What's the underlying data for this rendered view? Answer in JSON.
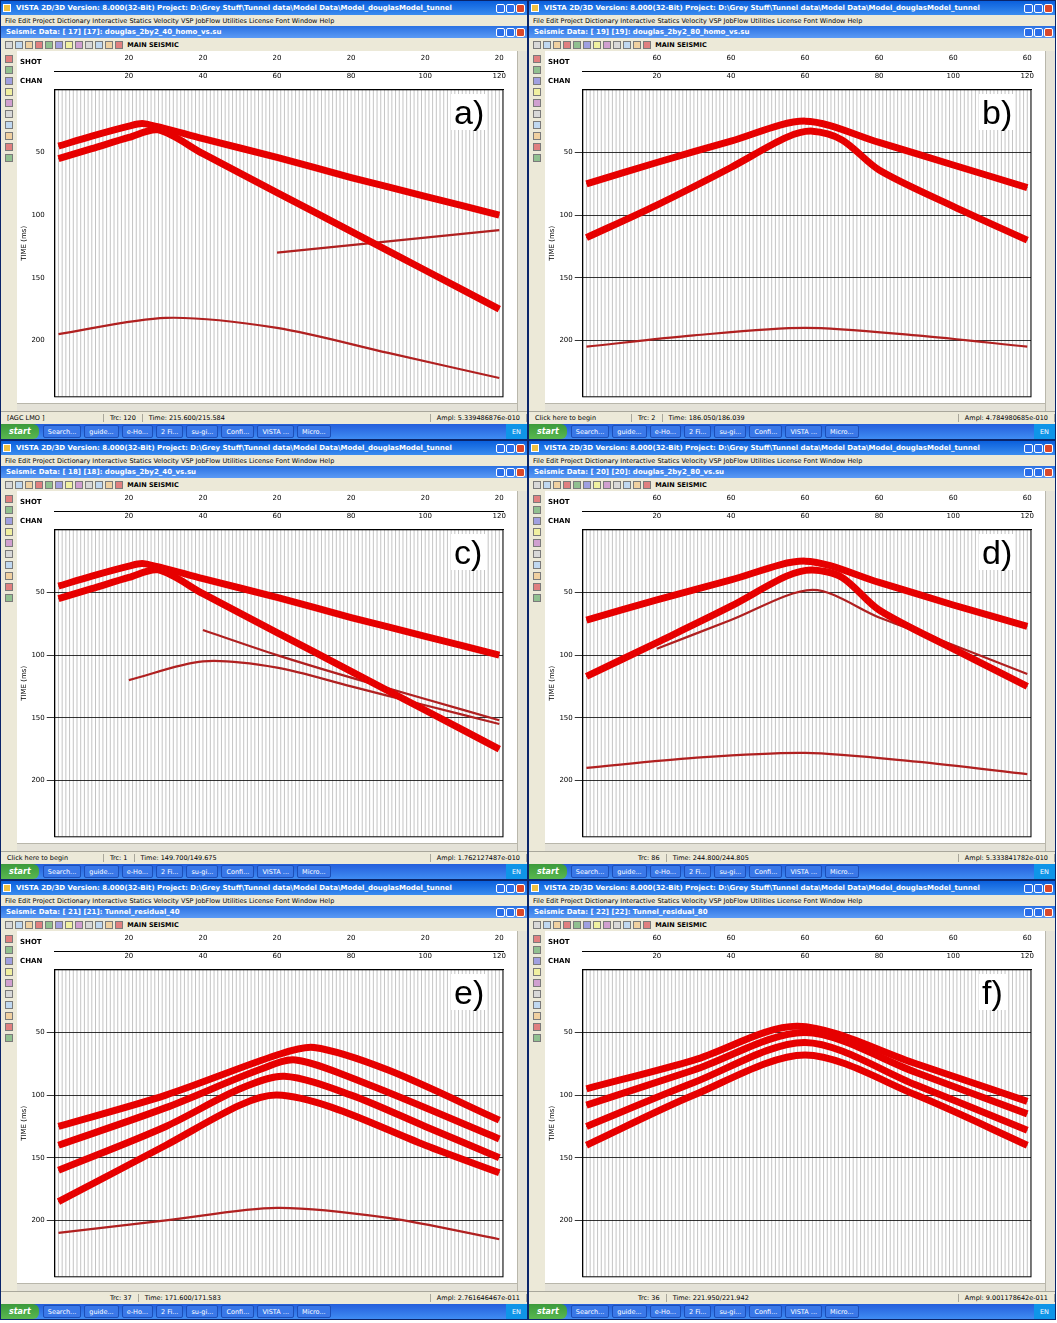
{
  "screens": [
    {
      "letter": "a)",
      "window_title": "VISTA 2D/3D Version: 8.000(32-Bit) Project: D:\\Grey Stuff\\Tunnel data\\Model Data\\Model_douglasModel_tunnel",
      "menu": "File Edit Project Dictionary Interactive Statics Velocity VSP JobFlow Utilities License Font Window Help",
      "subtitle": "Seismic Data: [ 17] [17]: douglas_2by2_40_homo_vs.su",
      "toolbar_label": "MAIN SEISMIC",
      "status": [
        "[AGC LMO ]",
        "Trc: 120",
        "Time: 215.600/215.584",
        "Ampl: 5.339486876e-010"
      ],
      "taskbar": [
        "start",
        "Search...",
        "guide...",
        "e-Ho...",
        "2 Fi...",
        "su-gi...",
        "Confi...",
        "VISTA ...",
        "Micro...",
        "EN"
      ]
    },
    {
      "letter": "b)",
      "window_title": "VISTA 2D/3D Version: 8.000(32-Bit) Project: D:\\Grey Stuff\\Tunnel data\\Model Data\\Model_douglasModel_tunnel",
      "menu": "File Edit Project Dictionary Interactive Statics Velocity VSP JobFlow Utilities License Font Window Help",
      "subtitle": "Seismic Data: [ 19] [19]: douglas_2by2_80_homo_vs.su",
      "toolbar_label": "MAIN SEISMIC",
      "status": [
        "Click here to begin",
        "Trc: 2",
        "Time: 186.050/186.039",
        "Ampl: 4.784980685e-010"
      ],
      "taskbar": [
        "start",
        "Search...",
        "guide...",
        "e-Ho...",
        "2 Fi...",
        "su-gi...",
        "Confi...",
        "VISTA ...",
        "Micro...",
        "EN"
      ]
    },
    {
      "letter": "c)",
      "window_title": "VISTA 2D/3D Version: 8.000(32-Bit) Project: D:\\Grey Stuff\\Tunnel data\\Model Data\\Model_douglasModel_tunnel",
      "menu": "File Edit Project Dictionary Interactive Statics Velocity VSP JobFlow Utilities License Font Window Help",
      "subtitle": "Seismic Data: [ 18] [18]: douglas_2by2_40_vs.su",
      "toolbar_label": "MAIN SEISMIC",
      "status": [
        "Click here to begin",
        "Trc: 1",
        "Time: 149.700/149.675",
        "Ampl: 1.762127487e-010"
      ],
      "taskbar": [
        "start",
        "Search...",
        "guide...",
        "e-Ho...",
        "2 Fi...",
        "su-gi...",
        "Confi...",
        "VISTA ...",
        "Micro...",
        "EN"
      ]
    },
    {
      "letter": "d)",
      "window_title": "VISTA 2D/3D Version: 8.000(32-Bit) Project: D:\\Grey Stuff\\Tunnel data\\Model Data\\Model_douglasModel_tunnel",
      "menu": "File Edit Project Dictionary Interactive Statics Velocity VSP JobFlow Utilities License Font Window Help",
      "subtitle": "Seismic Data: [ 20] [20]: douglas_2by2_80_vs.su",
      "toolbar_label": "MAIN SEISMIC",
      "status": [
        "",
        "Trc: 86",
        "Time: 244.800/244.805",
        "Ampl: 5.333841782e-010"
      ],
      "taskbar": [
        "start",
        "Search...",
        "guide...",
        "e-Ho...",
        "2 Fi...",
        "su-gi...",
        "Confi...",
        "VISTA ...",
        "Micro...",
        "EN"
      ]
    },
    {
      "letter": "e)",
      "window_title": "VISTA 2D/3D Version: 8.000(32-Bit) Project: D:\\Grey Stuff\\Tunnel data\\Model Data\\Model_douglasModel_tunnel",
      "menu": "File Edit Project Dictionary Interactive Statics Velocity VSP JobFlow Utilities License Font Window Help",
      "subtitle": "Seismic Data: [ 21] [21]: Tunnel_residual_40",
      "toolbar_label": "MAIN SEISMIC",
      "status": [
        "",
        "Trc: 37",
        "Time: 171.600/171.583",
        "Ampl: 2.761646467e-011"
      ],
      "taskbar": [
        "start",
        "Search...",
        "guide...",
        "e-Ho...",
        "2 Fi...",
        "su-gi...",
        "Confi...",
        "VISTA ...",
        "Micro...",
        "EN"
      ]
    },
    {
      "letter": "f)",
      "window_title": "VISTA 2D/3D Version: 8.000(32-Bit) Project: D:\\Grey Stuff\\Tunnel data\\Model Data\\Model_douglasModel_tunnel",
      "menu": "File Edit Project Dictionary Interactive Statics Velocity VSP JobFlow Utilities License Font Window Help",
      "subtitle": "Seismic Data: [ 22] [22]: Tunnel_residual_80",
      "toolbar_label": "MAIN SEISMIC",
      "status": [
        "",
        "Trc: 36",
        "Time: 221.950/221.942",
        "Ampl: 9.001178642e-011"
      ],
      "taskbar": [
        "start",
        "Search...",
        "guide...",
        "e-Ho...",
        "2 Fi...",
        "su-gi...",
        "Confi...",
        "VISTA ...",
        "Micro...",
        "EN"
      ]
    }
  ],
  "chart_data": [
    {
      "type": "line",
      "xlabel": "CHAN",
      "x2label": "SHOT",
      "ylabel": "TIME (ms)",
      "xlim": [
        0,
        121
      ],
      "xticks": [
        20,
        40,
        60,
        80,
        100,
        120
      ],
      "x2ticks": [
        {
          "value": 20,
          "label": "20"
        },
        {
          "value": 40,
          "label": "20"
        },
        {
          "value": 60,
          "label": "20"
        },
        {
          "value": 80,
          "label": "20"
        },
        {
          "value": 100,
          "label": "20"
        },
        {
          "value": 120,
          "label": "20"
        }
      ],
      "ylim": [
        0,
        245
      ],
      "yticks": [
        50,
        100,
        150,
        200
      ],
      "grid": false,
      "series": [
        {
          "x": [
            1,
            10,
            20,
            24,
            40,
            60,
            80,
            100,
            120
          ],
          "values": [
            45,
            37,
            29,
            27,
            39,
            54,
            70,
            85,
            100
          ],
          "color": "#e60000",
          "line_style": "thick"
        },
        {
          "x": [
            1,
            10,
            20,
            28,
            40,
            60,
            80,
            100,
            120
          ],
          "values": [
            55,
            47,
            38,
            32,
            51,
            82,
            113,
            144,
            175
          ],
          "color": "#e60000",
          "line_style": "thick"
        },
        {
          "x": [
            1,
            30,
            60,
            90,
            120
          ],
          "values": [
            195,
            182,
            190,
            210,
            230
          ],
          "color": "#b02020",
          "line_style": "thin"
        },
        {
          "x": [
            60,
            80,
            100,
            120
          ],
          "values": [
            130,
            124,
            118,
            112
          ],
          "color": "#b02020",
          "line_style": "thin"
        }
      ]
    },
    {
      "type": "line",
      "xlabel": "CHAN",
      "x2label": "SHOT",
      "ylabel": "TIME (ms)",
      "xlim": [
        0,
        121
      ],
      "xticks": [
        20,
        40,
        60,
        80,
        100,
        120
      ],
      "x2ticks": [
        {
          "value": 20,
          "label": "60"
        },
        {
          "value": 40,
          "label": "60"
        },
        {
          "value": 60,
          "label": "60"
        },
        {
          "value": 80,
          "label": "60"
        },
        {
          "value": 100,
          "label": "60"
        },
        {
          "value": 120,
          "label": "60"
        }
      ],
      "ylim": [
        0,
        245
      ],
      "yticks": [
        50,
        100,
        150,
        200
      ],
      "grid": true,
      "series": [
        {
          "x": [
            1,
            20,
            40,
            60,
            80,
            100,
            120
          ],
          "values": [
            75,
            58,
            41,
            25,
            42,
            60,
            78
          ],
          "color": "#e60000",
          "line_style": "thick"
        },
        {
          "x": [
            1,
            20,
            40,
            55,
            62,
            70,
            80,
            100,
            120
          ],
          "values": [
            118,
            92,
            62,
            38,
            33,
            40,
            64,
            93,
            120
          ],
          "color": "#e60000",
          "line_style": "thick"
        },
        {
          "x": [
            1,
            30,
            60,
            90,
            120
          ],
          "values": [
            205,
            196,
            190,
            196,
            205
          ],
          "color": "#b02020",
          "line_style": "thin"
        }
      ]
    },
    {
      "type": "line",
      "xlabel": "CHAN",
      "x2label": "SHOT",
      "ylabel": "TIME (ms)",
      "xlim": [
        0,
        121
      ],
      "xticks": [
        20,
        40,
        60,
        80,
        100,
        120
      ],
      "x2ticks": [
        {
          "value": 20,
          "label": "20"
        },
        {
          "value": 40,
          "label": "20"
        },
        {
          "value": 60,
          "label": "20"
        },
        {
          "value": 80,
          "label": "20"
        },
        {
          "value": 100,
          "label": "20"
        },
        {
          "value": 120,
          "label": "20"
        }
      ],
      "ylim": [
        0,
        245
      ],
      "yticks": [
        50,
        100,
        150,
        200
      ],
      "grid": true,
      "series": [
        {
          "x": [
            1,
            10,
            20,
            24,
            40,
            60,
            80,
            100,
            120
          ],
          "values": [
            45,
            37,
            29,
            27,
            39,
            54,
            70,
            85,
            100
          ],
          "color": "#e60000",
          "line_style": "thick"
        },
        {
          "x": [
            1,
            10,
            20,
            28,
            40,
            60,
            80,
            100,
            120
          ],
          "values": [
            55,
            47,
            38,
            32,
            51,
            82,
            113,
            144,
            175
          ],
          "color": "#e60000",
          "line_style": "thick"
        },
        {
          "x": [
            20,
            40,
            60,
            80,
            100,
            120
          ],
          "values": [
            120,
            105,
            110,
            125,
            140,
            155
          ],
          "color": "#b02020",
          "line_style": "thin"
        },
        {
          "x": [
            40,
            60,
            80,
            100,
            120
          ],
          "values": [
            80,
            100,
            118,
            135,
            152
          ],
          "color": "#b02020",
          "line_style": "thin"
        }
      ]
    },
    {
      "type": "line",
      "xlabel": "CHAN",
      "x2label": "SHOT",
      "ylabel": "TIME (ms)",
      "xlim": [
        0,
        121
      ],
      "xticks": [
        20,
        40,
        60,
        80,
        100,
        120
      ],
      "x2ticks": [
        {
          "value": 20,
          "label": "60"
        },
        {
          "value": 40,
          "label": "60"
        },
        {
          "value": 60,
          "label": "60"
        },
        {
          "value": 80,
          "label": "60"
        },
        {
          "value": 100,
          "label": "60"
        },
        {
          "value": 120,
          "label": "60"
        }
      ],
      "ylim": [
        0,
        245
      ],
      "yticks": [
        50,
        100,
        150,
        200
      ],
      "grid": true,
      "series": [
        {
          "x": [
            1,
            20,
            40,
            60,
            80,
            100,
            120
          ],
          "values": [
            72,
            56,
            40,
            25,
            42,
            60,
            77
          ],
          "color": "#e60000",
          "line_style": "thick"
        },
        {
          "x": [
            1,
            20,
            40,
            55,
            62,
            70,
            80,
            100,
            120
          ],
          "values": [
            117,
            90,
            61,
            37,
            32,
            38,
            64,
            95,
            125
          ],
          "color": "#e60000",
          "line_style": "thick"
        },
        {
          "x": [
            20,
            40,
            62,
            80,
            100,
            120
          ],
          "values": [
            95,
            72,
            48,
            70,
            92,
            115
          ],
          "color": "#b02020",
          "line_style": "thin"
        },
        {
          "x": [
            1,
            30,
            60,
            90,
            120
          ],
          "values": [
            190,
            182,
            178,
            185,
            195
          ],
          "color": "#b02020",
          "line_style": "thin"
        }
      ]
    },
    {
      "type": "line",
      "xlabel": "CHAN",
      "x2label": "SHOT",
      "ylabel": "TIME (ms)",
      "xlim": [
        0,
        121
      ],
      "xticks": [
        20,
        40,
        60,
        80,
        100,
        120
      ],
      "x2ticks": [
        {
          "value": 20,
          "label": "20"
        },
        {
          "value": 40,
          "label": "20"
        },
        {
          "value": 60,
          "label": "20"
        },
        {
          "value": 80,
          "label": "20"
        },
        {
          "value": 100,
          "label": "20"
        },
        {
          "value": 120,
          "label": "20"
        }
      ],
      "ylim": [
        0,
        245
      ],
      "yticks": [
        50,
        100,
        150,
        200
      ],
      "grid": true,
      "series": [
        {
          "x": [
            1,
            30,
            50,
            60,
            75,
            100,
            120
          ],
          "values": [
            185,
            140,
            108,
            100,
            110,
            140,
            162
          ],
          "color": "#e60000",
          "line_style": "thick"
        },
        {
          "x": [
            1,
            30,
            50,
            62,
            80,
            100,
            120
          ],
          "values": [
            160,
            125,
            95,
            85,
            100,
            125,
            150
          ],
          "color": "#e60000",
          "line_style": "thick"
        },
        {
          "x": [
            1,
            30,
            55,
            65,
            85,
            120
          ],
          "values": [
            140,
            110,
            80,
            72,
            92,
            135
          ],
          "color": "#e60000",
          "line_style": "thick"
        },
        {
          "x": [
            1,
            30,
            60,
            70,
            90,
            120
          ],
          "values": [
            125,
            100,
            68,
            62,
            80,
            120
          ],
          "color": "#e60000",
          "line_style": "thick"
        },
        {
          "x": [
            1,
            30,
            60,
            90,
            120
          ],
          "values": [
            210,
            200,
            190,
            198,
            215
          ],
          "color": "#b02020",
          "line_style": "thin"
        }
      ]
    },
    {
      "type": "line",
      "xlabel": "CHAN",
      "x2label": "SHOT",
      "ylabel": "TIME (ms)",
      "xlim": [
        0,
        121
      ],
      "xticks": [
        20,
        40,
        60,
        80,
        100,
        120
      ],
      "x2ticks": [
        {
          "value": 20,
          "label": "60"
        },
        {
          "value": 40,
          "label": "60"
        },
        {
          "value": 60,
          "label": "60"
        },
        {
          "value": 80,
          "label": "60"
        },
        {
          "value": 100,
          "label": "60"
        },
        {
          "value": 120,
          "label": "60"
        }
      ],
      "ylim": [
        0,
        245
      ],
      "yticks": [
        50,
        100,
        150,
        200
      ],
      "grid": true,
      "series": [
        {
          "x": [
            1,
            30,
            60,
            90,
            120
          ],
          "values": [
            140,
            100,
            68,
            100,
            140
          ],
          "color": "#e60000",
          "line_style": "thick"
        },
        {
          "x": [
            1,
            30,
            60,
            90,
            120
          ],
          "values": [
            125,
            90,
            58,
            92,
            128
          ],
          "color": "#e60000",
          "line_style": "thick"
        },
        {
          "x": [
            1,
            30,
            60,
            90,
            120
          ],
          "values": [
            108,
            80,
            50,
            82,
            115
          ],
          "color": "#e60000",
          "line_style": "thick"
        },
        {
          "x": [
            1,
            30,
            58,
            90,
            120
          ],
          "values": [
            95,
            72,
            45,
            75,
            105
          ],
          "color": "#e60000",
          "line_style": "thick"
        }
      ]
    }
  ]
}
